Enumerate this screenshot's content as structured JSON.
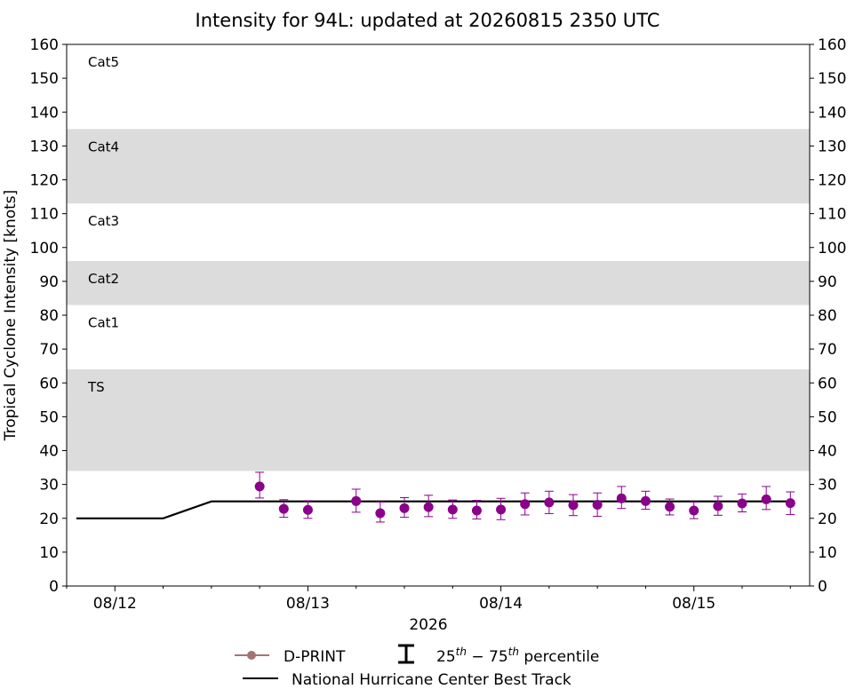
{
  "chart_data": {
    "type": "scatter",
    "title": "Intensity for 94L: updated at 20260815 2350 UTC",
    "xlabel": "2026",
    "ylabel": "Tropical Cyclone Intensity [knots]",
    "ylim": [
      0,
      160
    ],
    "yticks": [
      0,
      10,
      20,
      30,
      40,
      50,
      60,
      70,
      80,
      90,
      100,
      110,
      120,
      130,
      140,
      150,
      160
    ],
    "y_axis_mirrored_right": true,
    "xlim_days": [
      11.75,
      15.6
    ],
    "x_major_ticks": [
      {
        "day": 12,
        "label": "08/12"
      },
      {
        "day": 13,
        "label": "08/13"
      },
      {
        "day": 14,
        "label": "08/14"
      },
      {
        "day": 15,
        "label": "08/15"
      }
    ],
    "x_minor_ticks_days": [
      11.75,
      12.25,
      12.5,
      12.75,
      13.25,
      13.5,
      13.75,
      14.25,
      14.5,
      14.75,
      15.25,
      15.5
    ],
    "category_bands": [
      {
        "label": "TS",
        "from": 34,
        "to": 64,
        "shaded": true
      },
      {
        "label": "Cat1",
        "from": 64,
        "to": 83,
        "shaded": false
      },
      {
        "label": "Cat2",
        "from": 83,
        "to": 96,
        "shaded": true
      },
      {
        "label": "Cat3",
        "from": 96,
        "to": 113,
        "shaded": false
      },
      {
        "label": "Cat4",
        "from": 113,
        "to": 135,
        "shaded": true
      },
      {
        "label": "Cat5",
        "from": 135,
        "to": 160,
        "shaded": false
      }
    ],
    "series": [
      {
        "name": "D-PRINT",
        "kind": "points_with_errorbars",
        "color": "#8b008b",
        "legend_color": "#a47474",
        "points": [
          {
            "x": 12.75,
            "y": 29.4,
            "p25": 26.0,
            "p75": 33.6
          },
          {
            "x": 12.875,
            "y": 22.8,
            "p25": 20.3,
            "p75": 25.5
          },
          {
            "x": 13.0,
            "y": 22.5,
            "p25": 20.0,
            "p75": 25.2
          },
          {
            "x": 13.25,
            "y": 25.1,
            "p25": 21.8,
            "p75": 28.6
          },
          {
            "x": 13.375,
            "y": 21.5,
            "p25": 18.9,
            "p75": 24.8
          },
          {
            "x": 13.5,
            "y": 23.0,
            "p25": 20.3,
            "p75": 26.1
          },
          {
            "x": 13.625,
            "y": 23.3,
            "p25": 20.5,
            "p75": 26.8
          },
          {
            "x": 13.75,
            "y": 22.6,
            "p25": 20.0,
            "p75": 25.4
          },
          {
            "x": 13.875,
            "y": 22.3,
            "p25": 19.8,
            "p75": 25.3
          },
          {
            "x": 14.0,
            "y": 22.6,
            "p25": 19.6,
            "p75": 25.9
          },
          {
            "x": 14.125,
            "y": 24.2,
            "p25": 21.0,
            "p75": 27.5
          },
          {
            "x": 14.25,
            "y": 24.7,
            "p25": 21.4,
            "p75": 28.0
          },
          {
            "x": 14.375,
            "y": 23.9,
            "p25": 20.8,
            "p75": 27.0
          },
          {
            "x": 14.5,
            "y": 24.0,
            "p25": 20.6,
            "p75": 27.5
          },
          {
            "x": 14.625,
            "y": 25.9,
            "p25": 22.9,
            "p75": 29.4
          },
          {
            "x": 14.75,
            "y": 25.1,
            "p25": 22.7,
            "p75": 28.0
          },
          {
            "x": 14.875,
            "y": 23.4,
            "p25": 21.0,
            "p75": 25.7
          },
          {
            "x": 15.0,
            "y": 22.3,
            "p25": 19.9,
            "p75": 24.8
          },
          {
            "x": 15.125,
            "y": 23.6,
            "p25": 20.9,
            "p75": 26.5
          },
          {
            "x": 15.25,
            "y": 24.4,
            "p25": 21.9,
            "p75": 27.2
          },
          {
            "x": 15.375,
            "y": 25.6,
            "p25": 22.6,
            "p75": 29.4
          },
          {
            "x": 15.5,
            "y": 24.5,
            "p25": 21.1,
            "p75": 27.8
          }
        ]
      },
      {
        "name": "National Hurricane Center Best Track",
        "kind": "line",
        "color": "#000000",
        "x": [
          11.8,
          12.25,
          12.5,
          15.5
        ],
        "y": [
          20,
          20,
          25,
          25
        ]
      }
    ],
    "legend": {
      "placement": "bottom-center",
      "entries": [
        "D-PRINT",
        "25th - 75th percentile",
        "National Hurricane Center Best Track"
      ],
      "percentile_label": {
        "low_base": "25",
        "low_sup": "th",
        "sep": " − ",
        "high_base": "75",
        "high_sup": "th",
        "suffix": " percentile"
      }
    },
    "band_color": "#dcdcdc"
  }
}
